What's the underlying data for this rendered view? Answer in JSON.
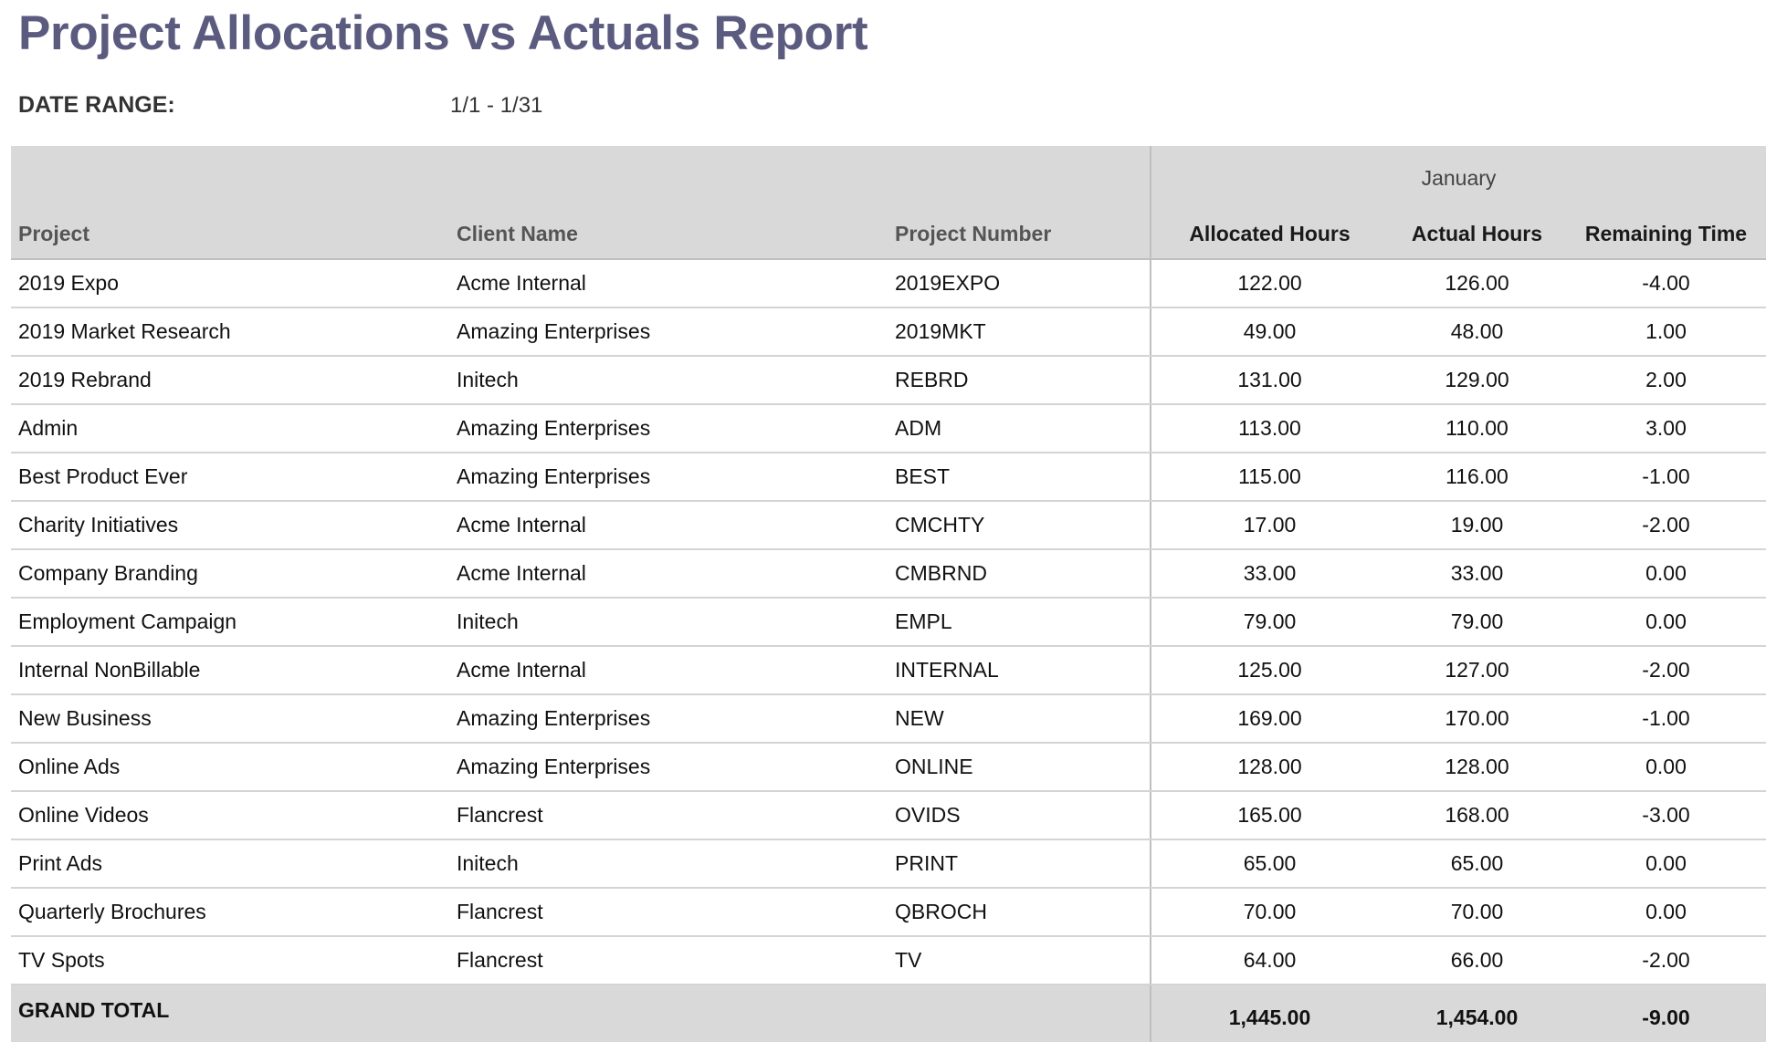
{
  "report": {
    "title": "Project Allocations vs Actuals Report",
    "date_range_label": "DATE RANGE:",
    "date_range_value": "1/1 - 1/31"
  },
  "table": {
    "month": "January",
    "columns": {
      "project": "Project",
      "client": "Client Name",
      "number": "Project Number",
      "allocated": "Allocated Hours",
      "actual": "Actual Hours",
      "remaining": "Remaining Time"
    },
    "rows": [
      {
        "project": "2019 Expo",
        "client": "Acme Internal",
        "number": "2019EXPO",
        "allocated": "122.00",
        "actual": "126.00",
        "remaining": "-4.00"
      },
      {
        "project": "2019 Market Research",
        "client": "Amazing Enterprises",
        "number": "2019MKT",
        "allocated": "49.00",
        "actual": "48.00",
        "remaining": "1.00"
      },
      {
        "project": "2019 Rebrand",
        "client": "Initech",
        "number": "REBRD",
        "allocated": "131.00",
        "actual": "129.00",
        "remaining": "2.00"
      },
      {
        "project": "Admin",
        "client": "Amazing Enterprises",
        "number": "ADM",
        "allocated": "113.00",
        "actual": "110.00",
        "remaining": "3.00"
      },
      {
        "project": "Best Product Ever",
        "client": "Amazing Enterprises",
        "number": "BEST",
        "allocated": "115.00",
        "actual": "116.00",
        "remaining": "-1.00"
      },
      {
        "project": "Charity Initiatives",
        "client": "Acme Internal",
        "number": "CMCHTY",
        "allocated": "17.00",
        "actual": "19.00",
        "remaining": "-2.00"
      },
      {
        "project": "Company Branding",
        "client": "Acme Internal",
        "number": "CMBRND",
        "allocated": "33.00",
        "actual": "33.00",
        "remaining": "0.00"
      },
      {
        "project": "Employment Campaign",
        "client": "Initech",
        "number": "EMPL",
        "allocated": "79.00",
        "actual": "79.00",
        "remaining": "0.00"
      },
      {
        "project": "Internal NonBillable",
        "client": "Acme Internal",
        "number": "INTERNAL",
        "allocated": "125.00",
        "actual": "127.00",
        "remaining": "-2.00"
      },
      {
        "project": "New Business",
        "client": "Amazing Enterprises",
        "number": "NEW",
        "allocated": "169.00",
        "actual": "170.00",
        "remaining": "-1.00"
      },
      {
        "project": "Online Ads",
        "client": "Amazing Enterprises",
        "number": "ONLINE",
        "allocated": "128.00",
        "actual": "128.00",
        "remaining": "0.00"
      },
      {
        "project": "Online Videos",
        "client": "Flancrest",
        "number": "OVIDS",
        "allocated": "165.00",
        "actual": "168.00",
        "remaining": "-3.00"
      },
      {
        "project": "Print Ads",
        "client": "Initech",
        "number": "PRINT",
        "allocated": "65.00",
        "actual": "65.00",
        "remaining": "0.00"
      },
      {
        "project": "Quarterly Brochures",
        "client": "Flancrest",
        "number": "QBROCH",
        "allocated": "70.00",
        "actual": "70.00",
        "remaining": "0.00"
      },
      {
        "project": "TV Spots",
        "client": "Flancrest",
        "number": "TV",
        "allocated": "64.00",
        "actual": "66.00",
        "remaining": "-2.00"
      }
    ],
    "total": {
      "label": "GRAND TOTAL",
      "allocated": "1,445.00",
      "actual": "1,454.00",
      "remaining": "-9.00"
    }
  }
}
